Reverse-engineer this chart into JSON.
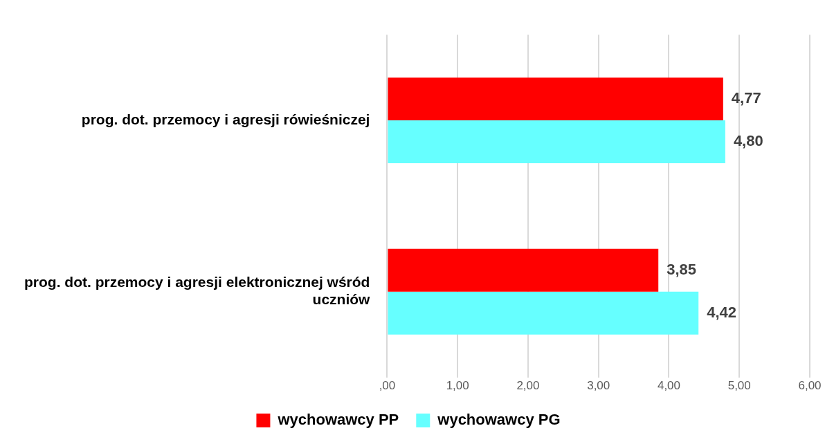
{
  "chart_data": {
    "type": "bar",
    "orientation": "horizontal",
    "categories": [
      "prog. dot. przemocy i agresji rówieśniczej",
      "prog. dot. przemocy i agresji elektronicznej wśród uczniów"
    ],
    "series": [
      {
        "name": "wychowawcy PP",
        "color": "#ff0000",
        "values": [
          4.77,
          3.85
        ],
        "value_labels": [
          "4,77",
          "3,85"
        ]
      },
      {
        "name": "wychowawcy PG",
        "color": "#66ffff",
        "values": [
          4.8,
          4.42
        ],
        "value_labels": [
          "4,80",
          "4,42"
        ]
      }
    ],
    "xlim": [
      0,
      6
    ],
    "xticks": [
      {
        "value": 0,
        "label": ",00"
      },
      {
        "value": 1,
        "label": "1,00"
      },
      {
        "value": 2,
        "label": "2,00"
      },
      {
        "value": 3,
        "label": "3,00"
      },
      {
        "value": 4,
        "label": "4,00"
      },
      {
        "value": 5,
        "label": "5,00"
      },
      {
        "value": 6,
        "label": "6,00"
      }
    ],
    "grid": "x",
    "legend": "bottom"
  }
}
